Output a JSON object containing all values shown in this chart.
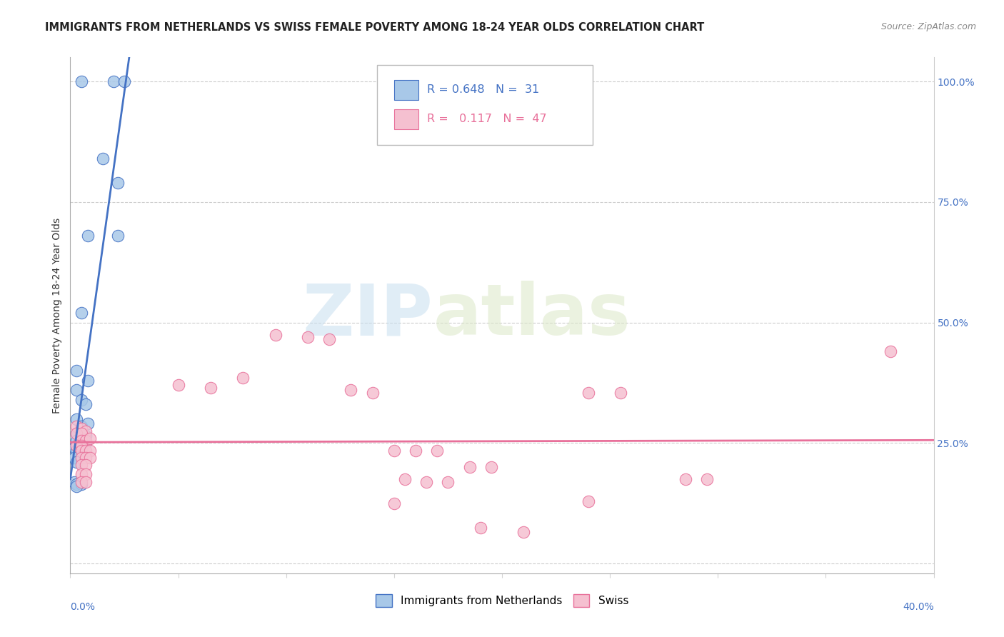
{
  "title": "IMMIGRANTS FROM NETHERLANDS VS SWISS FEMALE POVERTY AMONG 18-24 YEAR OLDS CORRELATION CHART",
  "source": "Source: ZipAtlas.com",
  "ylabel": "Female Poverty Among 18-24 Year Olds",
  "right_yticks": [
    0.0,
    0.25,
    0.5,
    0.75,
    1.0
  ],
  "right_yticklabels": [
    "",
    "25.0%",
    "50.0%",
    "75.0%",
    "100.0%"
  ],
  "legend_blue_r": "0.648",
  "legend_blue_n": "31",
  "legend_pink_r": "0.117",
  "legend_pink_n": "47",
  "legend_label_blue": "Immigrants from Netherlands",
  "legend_label_pink": "Swiss",
  "blue_color": "#a8c8e8",
  "pink_color": "#f5c0d0",
  "blue_line_color": "#4472c4",
  "pink_line_color": "#e8709a",
  "blue_scatter": [
    [
      0.005,
      1.0
    ],
    [
      0.02,
      1.0
    ],
    [
      0.025,
      1.0
    ],
    [
      0.015,
      0.84
    ],
    [
      0.022,
      0.79
    ],
    [
      0.008,
      0.68
    ],
    [
      0.022,
      0.68
    ],
    [
      0.005,
      0.52
    ],
    [
      0.003,
      0.4
    ],
    [
      0.008,
      0.38
    ],
    [
      0.003,
      0.36
    ],
    [
      0.005,
      0.34
    ],
    [
      0.007,
      0.33
    ],
    [
      0.003,
      0.3
    ],
    [
      0.005,
      0.285
    ],
    [
      0.008,
      0.29
    ],
    [
      0.003,
      0.27
    ],
    [
      0.005,
      0.265
    ],
    [
      0.007,
      0.265
    ],
    [
      0.003,
      0.255
    ],
    [
      0.005,
      0.25
    ],
    [
      0.007,
      0.25
    ],
    [
      0.002,
      0.24
    ],
    [
      0.003,
      0.235
    ],
    [
      0.005,
      0.235
    ],
    [
      0.002,
      0.22
    ],
    [
      0.003,
      0.21
    ],
    [
      0.002,
      0.17
    ],
    [
      0.003,
      0.165
    ],
    [
      0.005,
      0.165
    ],
    [
      0.003,
      0.16
    ]
  ],
  "pink_scatter": [
    [
      0.003,
      0.285
    ],
    [
      0.005,
      0.28
    ],
    [
      0.007,
      0.275
    ],
    [
      0.003,
      0.27
    ],
    [
      0.005,
      0.27
    ],
    [
      0.005,
      0.255
    ],
    [
      0.007,
      0.255
    ],
    [
      0.009,
      0.26
    ],
    [
      0.003,
      0.245
    ],
    [
      0.005,
      0.245
    ],
    [
      0.005,
      0.235
    ],
    [
      0.007,
      0.235
    ],
    [
      0.009,
      0.235
    ],
    [
      0.005,
      0.22
    ],
    [
      0.007,
      0.22
    ],
    [
      0.009,
      0.22
    ],
    [
      0.005,
      0.205
    ],
    [
      0.007,
      0.205
    ],
    [
      0.005,
      0.185
    ],
    [
      0.007,
      0.185
    ],
    [
      0.005,
      0.17
    ],
    [
      0.007,
      0.17
    ],
    [
      0.05,
      0.37
    ],
    [
      0.065,
      0.365
    ],
    [
      0.08,
      0.385
    ],
    [
      0.095,
      0.475
    ],
    [
      0.11,
      0.47
    ],
    [
      0.12,
      0.465
    ],
    [
      0.13,
      0.36
    ],
    [
      0.14,
      0.355
    ],
    [
      0.15,
      0.235
    ],
    [
      0.16,
      0.235
    ],
    [
      0.17,
      0.235
    ],
    [
      0.155,
      0.175
    ],
    [
      0.165,
      0.17
    ],
    [
      0.175,
      0.17
    ],
    [
      0.185,
      0.2
    ],
    [
      0.195,
      0.2
    ],
    [
      0.15,
      0.125
    ],
    [
      0.19,
      0.075
    ],
    [
      0.21,
      0.065
    ],
    [
      0.24,
      0.13
    ],
    [
      0.24,
      0.355
    ],
    [
      0.255,
      0.355
    ],
    [
      0.285,
      0.175
    ],
    [
      0.295,
      0.175
    ],
    [
      0.38,
      0.44
    ]
  ],
  "xlim": [
    0,
    0.4
  ],
  "ylim": [
    -0.02,
    1.05
  ],
  "watermark_zip": "ZIP",
  "watermark_atlas": "atlas",
  "title_fontsize": 10.5,
  "axis_fontsize": 10
}
